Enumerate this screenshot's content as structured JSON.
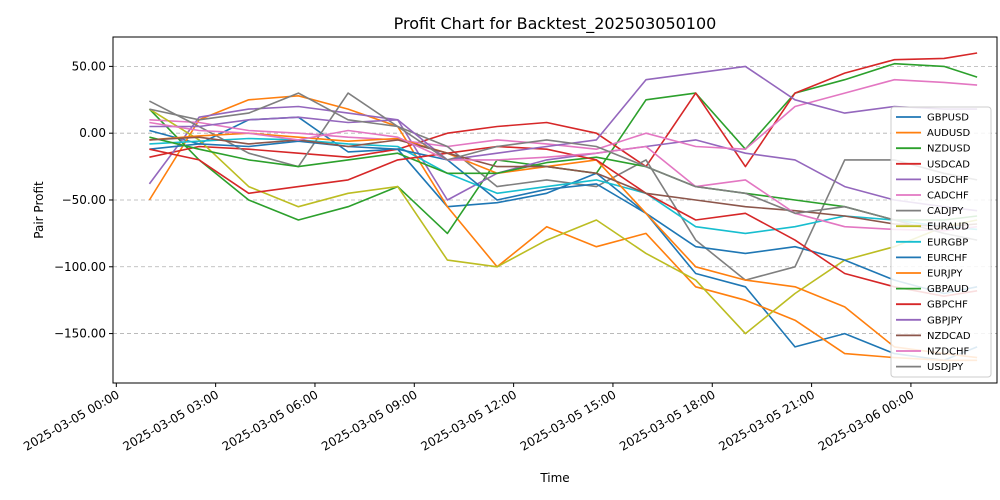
{
  "chart_data": {
    "type": "line",
    "title": "Profit Chart for Backtest_202503050100",
    "xlabel": "Time",
    "ylabel": "Pair Profit",
    "x_range_hours": [
      -0.1,
      26.6
    ],
    "x_ticks": [
      {
        "hours": 0,
        "label": "2025-03-05 00:00"
      },
      {
        "hours": 3,
        "label": "2025-03-05 03:00"
      },
      {
        "hours": 6,
        "label": "2025-03-05 06:00"
      },
      {
        "hours": 9,
        "label": "2025-03-05 09:00"
      },
      {
        "hours": 12,
        "label": "2025-03-05 12:00"
      },
      {
        "hours": 15,
        "label": "2025-03-05 15:00"
      },
      {
        "hours": 18,
        "label": "2025-03-05 18:00"
      },
      {
        "hours": 21,
        "label": "2025-03-05 21:00"
      },
      {
        "hours": 24,
        "label": "2025-03-06 00:00"
      }
    ],
    "ylim": [
      -187,
      72
    ],
    "y_ticks": [
      {
        "value": 50,
        "label": "50.00"
      },
      {
        "value": 0,
        "label": "0.00"
      },
      {
        "value": -50,
        "label": "−50.00"
      },
      {
        "value": -100,
        "label": "−100.00"
      },
      {
        "value": -150,
        "label": "−150.00"
      }
    ],
    "grid": "y-dashed",
    "legend_position": "right",
    "time_points_hours": [
      1,
      2.5,
      4,
      5.5,
      7,
      8.5,
      10,
      11.5,
      13,
      14.5,
      16,
      17.5,
      19,
      20.5,
      22,
      23.5,
      25,
      26
    ],
    "series": [
      {
        "name": "GBPUSD",
        "color": "#1f77b4",
        "values": [
          2,
          -8,
          10,
          12,
          -14,
          -12,
          -55,
          -52,
          -45,
          -30,
          -60,
          -105,
          -115,
          -160,
          -150,
          -165,
          -170,
          -160
        ]
      },
      {
        "name": "AUDUSD",
        "color": "#ff7f0e",
        "values": [
          -50,
          10,
          25,
          28,
          18,
          5,
          -55,
          -100,
          -70,
          -85,
          -75,
          -115,
          -125,
          -140,
          -165,
          -168,
          -170,
          -170
        ]
      },
      {
        "name": "NZDUSD",
        "color": "#2ca02c",
        "values": [
          18,
          -20,
          -50,
          -65,
          -55,
          -40,
          -75,
          -20,
          -25,
          -30,
          25,
          30,
          -12,
          30,
          40,
          52,
          50,
          42
        ]
      },
      {
        "name": "USDCAD",
        "color": "#d62728",
        "values": [
          -18,
          -10,
          -12,
          -15,
          -18,
          -12,
          0,
          5,
          8,
          0,
          -25,
          30,
          -25,
          30,
          45,
          55,
          56,
          60
        ]
      },
      {
        "name": "USDCHF",
        "color": "#9467bd",
        "values": [
          -38,
          12,
          18,
          20,
          15,
          10,
          -50,
          -30,
          -20,
          -15,
          -10,
          -5,
          -15,
          -20,
          -40,
          -50,
          -55,
          -58
        ]
      },
      {
        "name": "CADCHF",
        "color": "#e377c2",
        "values": [
          10,
          8,
          2,
          0,
          -3,
          -5,
          -10,
          -5,
          -8,
          -12,
          0,
          -10,
          -12,
          20,
          30,
          40,
          38,
          36
        ]
      },
      {
        "name": "CADJPY",
        "color": "#7f7f7f",
        "values": [
          24,
          5,
          -15,
          -25,
          30,
          5,
          -10,
          -40,
          -35,
          -40,
          -20,
          -80,
          -110,
          -100,
          -20,
          -20,
          -30,
          -35
        ]
      },
      {
        "name": "EURAUD",
        "color": "#bcbd22",
        "values": [
          18,
          -5,
          -40,
          -55,
          -45,
          -40,
          -95,
          -100,
          -80,
          -65,
          -90,
          -110,
          -150,
          -120,
          -95,
          -85,
          -70,
          -65
        ]
      },
      {
        "name": "EURGBP",
        "color": "#17becf",
        "values": [
          -8,
          -6,
          -4,
          -5,
          -8,
          -10,
          -30,
          -45,
          -40,
          -35,
          -45,
          -70,
          -75,
          -70,
          -62,
          -65,
          -70,
          -72
        ]
      },
      {
        "name": "EURCHF",
        "color": "#1f77b4",
        "values": [
          -12,
          -8,
          -10,
          -6,
          -10,
          -12,
          -20,
          -50,
          -42,
          -38,
          -60,
          -85,
          -90,
          -85,
          -95,
          -110,
          -120,
          -115
        ]
      },
      {
        "name": "EURJPY",
        "color": "#ff7f0e",
        "values": [
          -5,
          -2,
          0,
          -3,
          -6,
          -4,
          -15,
          -30,
          -25,
          -20,
          -60,
          -100,
          -110,
          -115,
          -130,
          -160,
          -165,
          -168
        ]
      },
      {
        "name": "GBPAUD",
        "color": "#2ca02c",
        "values": [
          -3,
          -12,
          -20,
          -25,
          -20,
          -15,
          -30,
          -30,
          -22,
          -18,
          -25,
          -40,
          -45,
          -50,
          -55,
          -65,
          -65,
          -62
        ]
      },
      {
        "name": "GBPCHF",
        "color": "#d62728",
        "values": [
          -12,
          -20,
          -45,
          -40,
          -35,
          -20,
          -15,
          -10,
          -12,
          -20,
          -45,
          -65,
          -60,
          -80,
          -105,
          -115,
          -122,
          -118
        ]
      },
      {
        "name": "GBPJPY",
        "color": "#9467bd",
        "values": [
          5,
          5,
          10,
          12,
          8,
          10,
          -20,
          -15,
          -10,
          -5,
          40,
          45,
          50,
          25,
          15,
          20,
          18,
          18
        ]
      },
      {
        "name": "NZDCAD",
        "color": "#8c564b",
        "values": [
          -5,
          -3,
          -8,
          -5,
          -10,
          -5,
          -15,
          -25,
          -25,
          -30,
          -45,
          -50,
          -55,
          -58,
          -62,
          -68,
          -70,
          -68
        ]
      },
      {
        "name": "NZDCHF",
        "color": "#e377c2",
        "values": [
          8,
          2,
          0,
          -5,
          2,
          -3,
          -20,
          -20,
          -18,
          -15,
          -10,
          -40,
          -35,
          -60,
          -70,
          -72,
          -73,
          -70
        ]
      },
      {
        "name": "USDJPY",
        "color": "#7f7f7f",
        "values": [
          18,
          10,
          15,
          30,
          10,
          5,
          -20,
          -10,
          -5,
          -10,
          -25,
          -40,
          -45,
          -60,
          -55,
          -65,
          -75,
          -80
        ]
      }
    ]
  }
}
